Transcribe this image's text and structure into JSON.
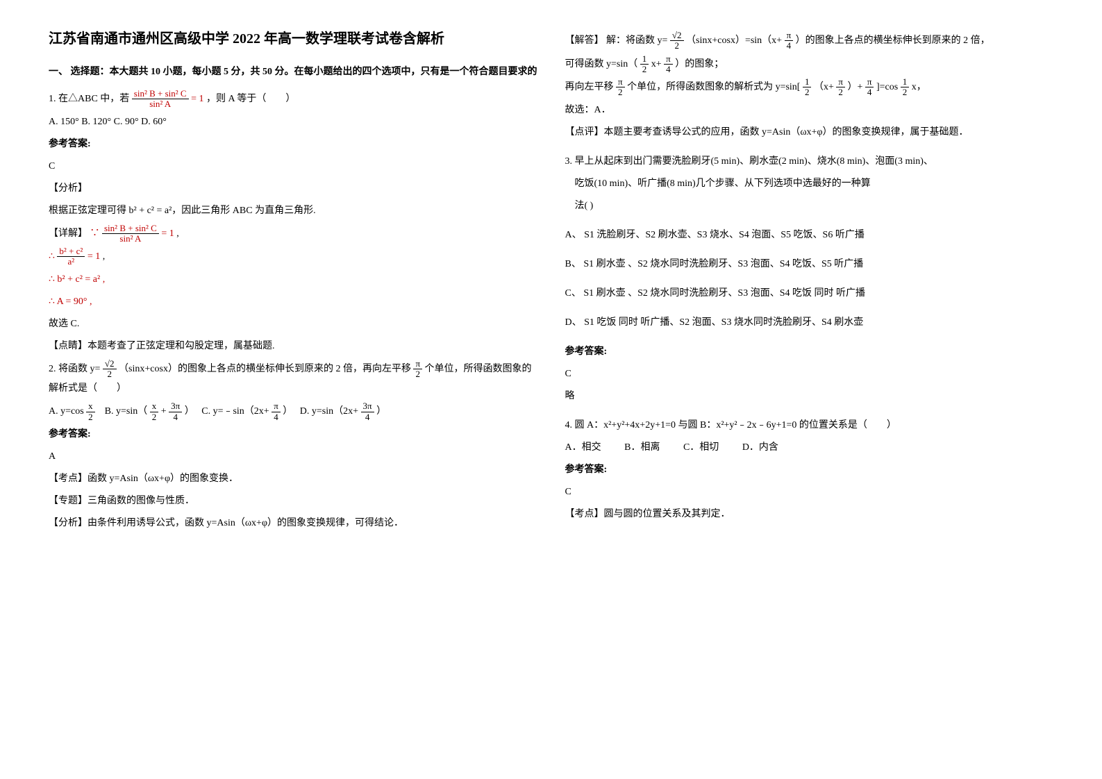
{
  "title": "江苏省南通市通州区高级中学 2022 年高一数学理联考试卷含解析",
  "section1": "一、 选择题：本大题共 10 小题，每小题 5 分，共 50 分。在每小题给出的四个选项中，只有是一个符合题目要求的",
  "q1": {
    "stem_prefix": "1. 在△ABC 中，若",
    "stem_suffix": "，则 A 等于（　　）",
    "formula_num": "sin² B + sin² C",
    "formula_den": "sin² A",
    "formula_eq": "= 1",
    "opts": "A. 150° B. 120° C. 90°   D. 60°",
    "ans_label": "参考答案:",
    "ans": "C",
    "analysis_label": "【分析】",
    "analysis": "根据正弦定理可得 b² + c² = a²，因此三角形 ABC 为直角三角形.",
    "detail_label": "【详解】",
    "detail_prefix": "∵",
    "line2_lhs_num": "b² + c²",
    "line2_lhs_den": "a²",
    "line2_rhs": "= 1",
    "line3": "∴ b² + c² = a²  ,",
    "line4": "∴ A = 90°  ,",
    "line5": "故选 C.",
    "comment_label": "【点睛】",
    "comment": "本题考查了正弦定理和勾股定理，属基础题."
  },
  "q2": {
    "stem_a": "2. 将函数 y=",
    "frac1_num": "√2",
    "frac1_den": "2",
    "stem_b": "（sinx+cosx）的图象上各点的横坐标伸长到原来的 2 倍，再向左平移",
    "frac2_num": "π",
    "frac2_den": "2",
    "stem_c": "个单位，所得函数图象的解析式是（　　）",
    "optA_a": "A. y=cos",
    "optA_num": "x",
    "optA_den": "2",
    "optB_a": "B. y=sin（",
    "optB_n1": "x",
    "optB_d1": "2",
    "optB_plus": "+",
    "optB_n2": "3π",
    "optB_d2": "4",
    "optB_b": "）",
    "optC_a": "C. y=﹣sin（2x+",
    "optC_num": "π",
    "optC_den": "4",
    "optC_b": "）",
    "optD_a": "D. y=sin（2x+",
    "optD_num": "3π",
    "optD_den": "4",
    "optD_b": "）",
    "ans_label": "参考答案:",
    "ans": "A",
    "kp_label": "【考点】",
    "kp": "函数 y=Asin（ωx+φ）的图象变换．",
    "zt_label": "【专题】",
    "zt": "三角函数的图像与性质．",
    "fx_label": "【分析】",
    "fx": "由条件利用诱导公式，函数 y=Asin（ωx+φ）的图象变换规律，可得结论．"
  },
  "right": {
    "jd_label": "【解答】",
    "jd_a": "解：将函数 y=",
    "jd_f1n": "√2",
    "jd_f1d": "2",
    "jd_b": "（sinx+cosx）=sin（x+",
    "jd_f2n": "π",
    "jd_f2d": "4",
    "jd_c": "）的图象上各点的横坐标伸长到原来的 2 倍，",
    "jd_d": "可得函数 y=sin（",
    "jd_f3n": "1",
    "jd_f3d": "2",
    "jd_e": "x+",
    "jd_f4n": "π",
    "jd_f4d": "4",
    "jd_f": "）的图象；",
    "jd_g": "再向左平移",
    "jd_f5n": "π",
    "jd_f5d": "2",
    "jd_h": "个单位，所得函数图象的解析式为 y=sin[",
    "jd_f6n": "1",
    "jd_f6d": "2",
    "jd_i": "（x+",
    "jd_f7n": "π",
    "jd_f7d": "2",
    "jd_j": "）+",
    "jd_f8n": "π",
    "jd_f8d": "4",
    "jd_k": "]=cos",
    "jd_f9n": "1",
    "jd_f9d": "2",
    "jd_l": "x，",
    "jd_m": "故选：A．",
    "dp_label": "【点评】",
    "dp": "本题主要考查诱导公式的应用，函数 y=Asin（ωx+φ）的图象变换规律，属于基础题．"
  },
  "q3": {
    "l1": "3. 早上从起床到出门需要洗脸刷牙(5 min)、刷水壶(2 min)、烧水(8 min)、泡面(3 min)、",
    "l2": "吃饭(10 min)、听广播(8 min)几个步骤、从下列选项中选最好的一种算",
    "l3": "法(    )",
    "a": "A、 S1 洗脸刷牙、S2 刷水壶、S3 烧水、S4 泡面、S5 吃饭、S6 听广播",
    "b": "B、 S1 刷水壶 、S2 烧水同时洗脸刷牙、S3 泡面、S4 吃饭、S5  听广播",
    "c": "C、 S1 刷水壶 、S2 烧水同时洗脸刷牙、S3 泡面、S4 吃饭 同时 听广播",
    "d": "D、 S1 吃饭 同时 听广播、S2 泡面、S3 烧水同时洗脸刷牙、S4 刷水壶",
    "ans_label": "参考答案:",
    "ans": "C",
    "omit": "略"
  },
  "q4": {
    "stem": "4. 圆 A：x²+y²+4x+2y+1=0 与圆 B：x²+y²﹣2x﹣6y+1=0 的位置关系是（　　）",
    "a": "A．相交",
    "b": "B．相离",
    "c": "C．相切",
    "d": "D．内含",
    "ans_label": "参考答案:",
    "ans": "C",
    "kp_label": "【考点】",
    "kp": "圆与圆的位置关系及其判定．"
  }
}
